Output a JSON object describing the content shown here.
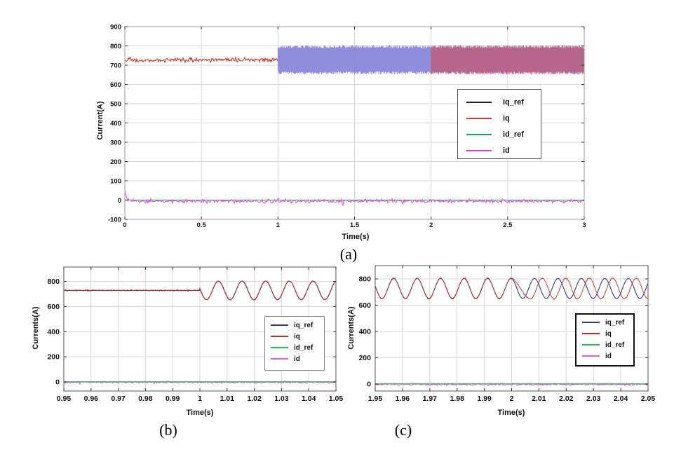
{
  "figure": {
    "background": "#ffffff"
  },
  "chart_data": [
    {
      "id": "a",
      "type": "line",
      "caption": "(a)",
      "xlabel": "Time(s)",
      "ylabel": "Current(A)",
      "xlim": [
        0,
        3
      ],
      "ylim": [
        -100,
        900
      ],
      "grid": true,
      "xticks": [
        "0",
        "0.5",
        "1",
        "1.5",
        "2",
        "2.5",
        "3"
      ],
      "yticks": [
        "-100",
        "0",
        "100",
        "200",
        "300",
        "400",
        "500",
        "600",
        "700",
        "800",
        "900"
      ],
      "legend": {
        "position": "middle-right",
        "entries": [
          {
            "label": "iq_ref",
            "color": "#1b2433"
          },
          {
            "label": "iq",
            "color": "#e0392e"
          },
          {
            "label": "id_ref",
            "color": "#16a66a"
          },
          {
            "label": "id",
            "color": "#e23fd9"
          }
        ]
      },
      "series": [
        {
          "name": "iq_ref",
          "kind": "osc_band",
          "range": [
            1,
            3
          ],
          "low": 652,
          "high": 804,
          "color": "#8482d8",
          "width": 0.8,
          "opacity": 0.9,
          "seed": 11
        },
        {
          "name": "iq",
          "kind": "noisy_flat",
          "range": [
            0,
            1
          ],
          "mean": 727,
          "noise": 16,
          "color": "#dc231b",
          "width": 1,
          "opacity": 1,
          "seed": 21
        },
        {
          "name": "iq",
          "kind": "osc_band",
          "range": [
            2,
            3
          ],
          "low": 651,
          "high": 805,
          "color": "#e03c3c",
          "width": 0.8,
          "opacity": 0.5,
          "seed": 31
        },
        {
          "name": "id_ref",
          "kind": "flat",
          "range": [
            0,
            3
          ],
          "value": 0,
          "color": "#13ad57",
          "width": 1,
          "opacity": 1
        },
        {
          "name": "id",
          "kind": "noisy_flat",
          "range": [
            0,
            3
          ],
          "mean": -5,
          "noise": 14,
          "spike": 60,
          "color": "#e23fd9",
          "width": 0.9,
          "opacity": 1,
          "seed": 41
        }
      ]
    },
    {
      "id": "b",
      "type": "line",
      "caption": "(b)",
      "xlabel": "Time(s)",
      "ylabel": "Currents(A)",
      "xlim": [
        0.95,
        1.05
      ],
      "ylim": [
        -72,
        914
      ],
      "grid": true,
      "xticks": [
        "0.95",
        "0.96",
        "0.97",
        "0.98",
        "0.99",
        "1",
        "1.01",
        "1.02",
        "1.03",
        "1.04",
        "1.05"
      ],
      "yticks": [
        "0",
        "200",
        "400",
        "600",
        "800"
      ],
      "legend": {
        "position": "middle-right",
        "entries": [
          {
            "label": "iq_ref",
            "color": "#2b3a8c"
          },
          {
            "label": "iq",
            "color": "#d42420"
          },
          {
            "label": "id_ref",
            "color": "#17c353"
          },
          {
            "label": "id",
            "color": "#e859e0"
          }
        ]
      },
      "series": [
        {
          "name": "iq_ref",
          "kind": "flat_then_sine",
          "range": [
            0.95,
            1.05
          ],
          "switch": 1,
          "mean": 728,
          "amp": 74,
          "period": 0.0087,
          "phase": 2.97,
          "color": "#2b3a8c",
          "width": 1.1,
          "opacity": 1
        },
        {
          "name": "iq",
          "kind": "track",
          "range": [
            0.95,
            1.05
          ],
          "switch": 1,
          "mean": 728,
          "amp": 74,
          "period": 0.0087,
          "phase": 2.92,
          "noise": 7,
          "color": "#d42420",
          "width": 0.9,
          "opacity": 1,
          "seed": 52
        },
        {
          "name": "id",
          "kind": "noisy_flat",
          "range": [
            0.95,
            1.05
          ],
          "mean": -3,
          "noise": 11,
          "color": "#e23fd9",
          "width": 0.9,
          "opacity": 1,
          "seed": 53
        },
        {
          "name": "id_ref",
          "kind": "flat",
          "range": [
            0.95,
            1.05
          ],
          "value": 2,
          "color": "#17c353",
          "width": 1.2,
          "opacity": 1
        }
      ]
    },
    {
      "id": "c",
      "type": "line",
      "caption": "(c)",
      "xlabel": "Time(s)",
      "ylabel": "Currents(A)",
      "xlim": [
        1.95,
        2.05
      ],
      "ylim": [
        -53,
        901
      ],
      "grid": true,
      "xticks": [
        "1.95",
        "1.96",
        "1.97",
        "1.98",
        "1.99",
        "2",
        "2.01",
        "2.02",
        "2.03",
        "2.04",
        "2.05"
      ],
      "yticks": [
        "0",
        "200",
        "400",
        "600",
        "800"
      ],
      "legend": {
        "position": "middle-right",
        "entries": [
          {
            "label": "iq_ref",
            "color": "#2b3a8c"
          },
          {
            "label": "iq",
            "color": "#d42420"
          },
          {
            "label": "id_ref",
            "color": "#17c353"
          },
          {
            "label": "id",
            "color": "#e859e0"
          }
        ]
      },
      "series": [
        {
          "name": "iq_ref",
          "kind": "sine",
          "range": [
            1.95,
            2.05
          ],
          "tref": 1.95,
          "mean": 727,
          "amp": 76,
          "period": 0.0086,
          "phase": 2.9,
          "color": "#2b3a8c",
          "width": 1.1,
          "opacity": 1
        },
        {
          "name": "iq",
          "kind": "sine_lag",
          "range": [
            1.95,
            2.05
          ],
          "tref": 1.95,
          "mean": 727,
          "amp": 78,
          "period": 0.0086,
          "phase": 2.9,
          "lag": 2.1,
          "lag_start": 2,
          "lag_ramp": 0.007,
          "noise": 6,
          "color": "#d42420",
          "width": 0.9,
          "opacity": 1,
          "seed": 62
        },
        {
          "name": "id",
          "kind": "noisy_flat",
          "range": [
            1.95,
            2.05
          ],
          "mean": -3,
          "noise": 11,
          "color": "#e23fd9",
          "width": 0.9,
          "opacity": 1,
          "seed": 63
        },
        {
          "name": "id_ref",
          "kind": "flat",
          "range": [
            1.95,
            2.05
          ],
          "value": 2,
          "color": "#17c353",
          "width": 1.2,
          "opacity": 1
        }
      ]
    }
  ]
}
